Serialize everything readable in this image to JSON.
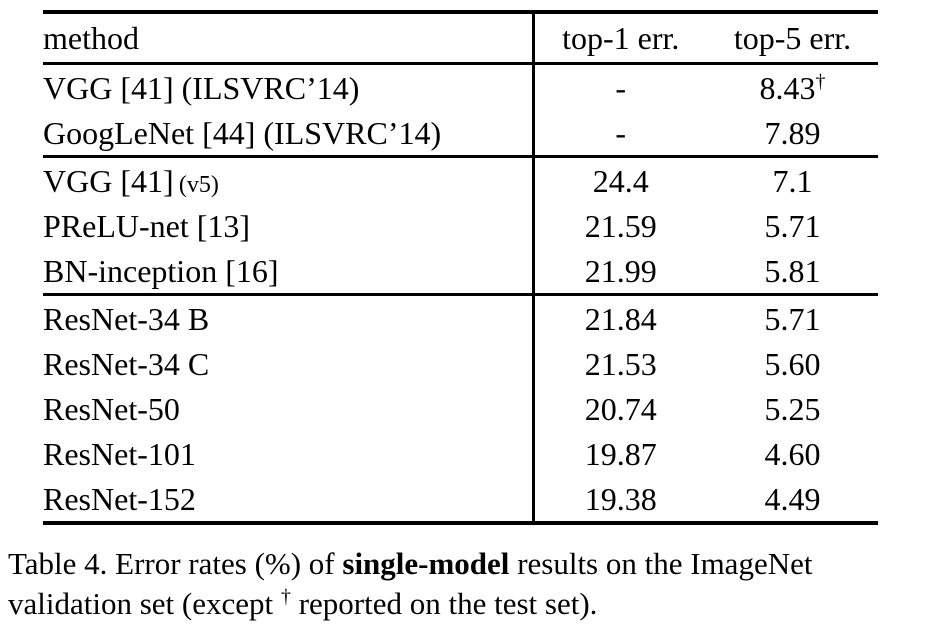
{
  "colors": {
    "text": "#000000",
    "background": "#ffffff",
    "rule": "#000000"
  },
  "table": {
    "header": {
      "method": "method",
      "top1": "top-1 err.",
      "top5": "top-5 err."
    },
    "sections": [
      {
        "rows": [
          {
            "method": "VGG [41] (ILSVRC’14)",
            "top1": "-",
            "top5": "8.43",
            "top5_sup": "†"
          },
          {
            "method": "GoogLeNet [44] (ILSVRC’14)",
            "top1": "-",
            "top5": "7.89"
          }
        ]
      },
      {
        "rows": [
          {
            "method": "VGG [41]",
            "method_small": "(v5)",
            "top1": "24.4",
            "top5": "7.1"
          },
          {
            "method": "PReLU-net [13]",
            "top1": "21.59",
            "top5": "5.71"
          },
          {
            "method": "BN-inception [16]",
            "top1": "21.99",
            "top5": "5.81"
          }
        ]
      },
      {
        "rows": [
          {
            "method": "ResNet-34 B",
            "top1": "21.84",
            "top5": "5.71"
          },
          {
            "method": "ResNet-34 C",
            "top1": "21.53",
            "top5": "5.60"
          },
          {
            "method": "ResNet-50",
            "top1": "20.74",
            "top5": "5.25"
          },
          {
            "method": "ResNet-101",
            "top1": "19.87",
            "top5": "4.60"
          },
          {
            "method": "ResNet-152",
            "top1": "19.38",
            "top5": "4.49",
            "emphasis": "bold"
          }
        ]
      }
    ]
  },
  "caption": {
    "line1_pre": "Table 4. Error rates (%) of ",
    "line1_bold": "single-model",
    "line1_post": " results on the ImageNet",
    "line2_pre": "validation set (except ",
    "line2_dagger": "†",
    "line2_post": " reported on the test set)."
  }
}
